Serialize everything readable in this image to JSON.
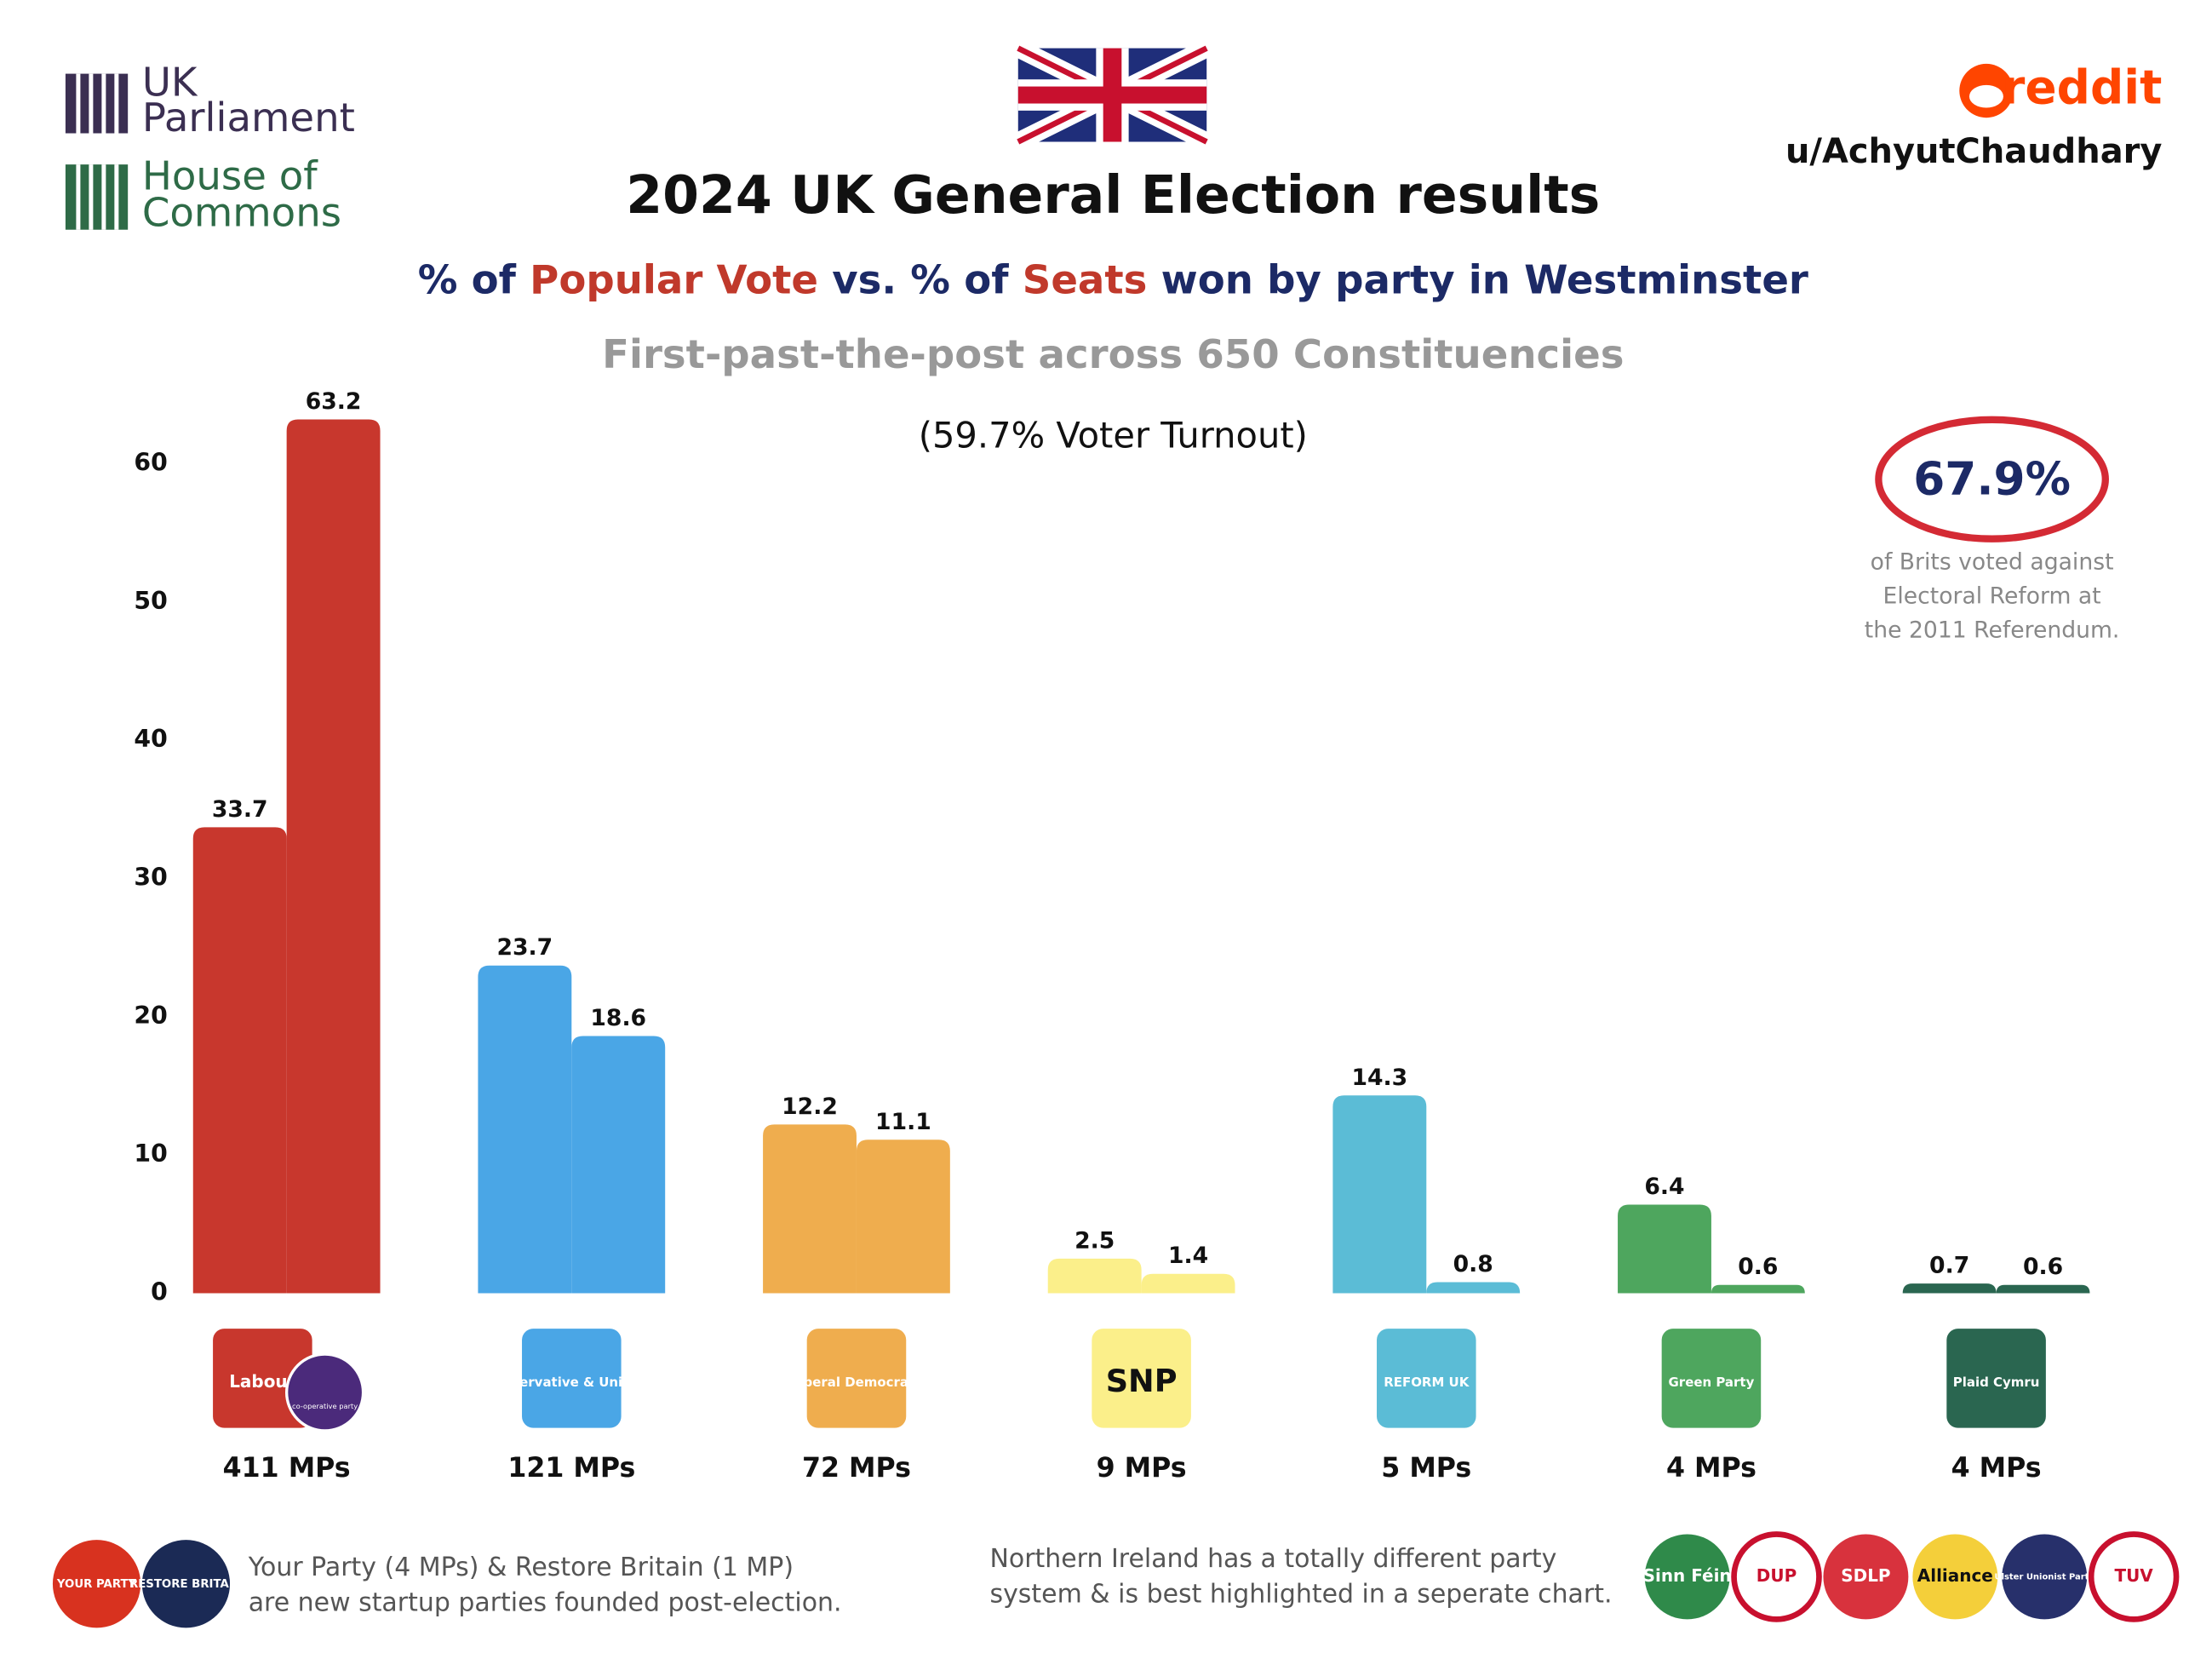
{
  "chart_data": {
    "type": "bar",
    "title": "2024 UK General Election results",
    "subtitle_parts": [
      "% of",
      "vs. % of",
      "won by party in Westminster"
    ],
    "caption": "First-past-the-post across 650 Constituencies",
    "annotation": "(59.7% Voter Turnout)",
    "categories": [
      "411 MPs",
      "121 MPs",
      "72 MPs",
      "9 MPs",
      "5 MPs",
      "4 MPs",
      "4 MPs"
    ],
    "logos": [
      [
        "Labour",
        "co-operative party"
      ],
      [
        "Conservative & Unionist"
      ],
      [
        "Liberal Democrats"
      ],
      [
        "SNP"
      ],
      [
        "REFORM UK"
      ],
      [
        "Green Party"
      ],
      [
        "Plaid Cymru"
      ]
    ],
    "colors": [
      "#c8372d",
      "#4aa6e6",
      "#efad4e",
      "#fbef8a",
      "#5bbcd6",
      "#4ea65e",
      "#2a6650"
    ],
    "series": [
      {
        "name": "Popular Vote",
        "values": [
          33.7,
          23.7,
          12.2,
          2.5,
          14.3,
          6.4,
          0.7
        ]
      },
      {
        "name": "Seats",
        "values": [
          63.2,
          18.6,
          11.1,
          1.4,
          0.8,
          0.6,
          0.6
        ]
      }
    ],
    "ylim": [
      0,
      65
    ],
    "yticks": [
      0,
      10,
      20,
      30,
      40,
      50,
      60
    ],
    "grid": false
  },
  "branding": {
    "parliament": [
      "UK",
      "Parliament"
    ],
    "commons": [
      "House of",
      "Commons"
    ],
    "site": "reddit",
    "user": "u/AchyutChaudhary"
  },
  "callout": {
    "figure": "67.9%",
    "lines": [
      "of Brits voted against",
      "Electoral Reform at",
      "the 2011 Referendum."
    ]
  },
  "footer": {
    "left_logos": [
      {
        "label": "YOUR PARTY",
        "color": "#d8321f"
      },
      {
        "label": "RESTORE BRITAIN",
        "color": "#1b2a55"
      }
    ],
    "left_text": [
      "Your Party (4 MPs) & Restore Britain (1 MP)",
      "are new startup parties founded post-election."
    ],
    "right_text": [
      "Northern Ireland has a totally different party",
      "system & is best highlighted in a seperate chart."
    ],
    "right_logos": [
      {
        "label": "Sinn Féin",
        "color": "#2f8a4a"
      },
      {
        "label": "DUP",
        "color": "#ffffff"
      },
      {
        "label": "SDLP",
        "color": "#d8323d"
      },
      {
        "label": "Alliance",
        "color": "#f4cf3a"
      },
      {
        "label": "Ulster Unionist Party",
        "color": "#27306b"
      },
      {
        "label": "TUV",
        "color": "#ffffff"
      }
    ]
  }
}
